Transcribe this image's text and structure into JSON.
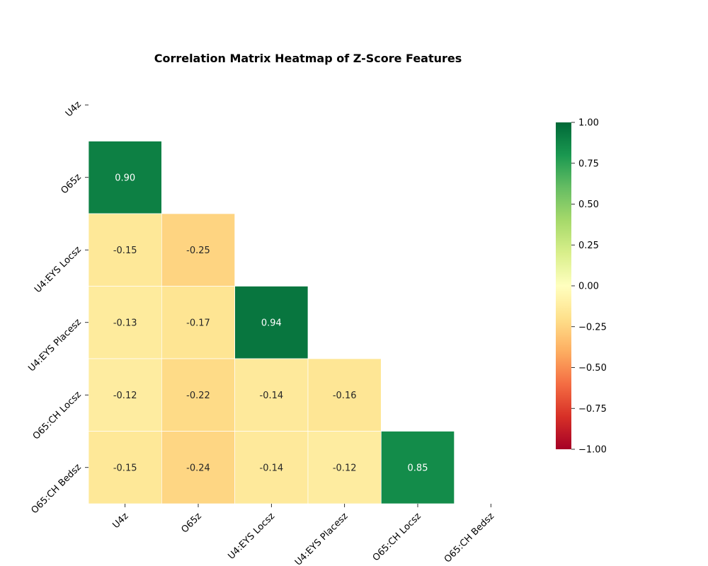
{
  "chart_data": {
    "type": "heatmap",
    "title": "Correlation Matrix Heatmap of Z-Score Features",
    "xlabel": "",
    "ylabel": "",
    "mask": "upper-triangle-including-diagonal",
    "categories": [
      "U4z",
      "O65z",
      "U4:EYS Locsz",
      "U4:EYS Placesz",
      "O65:CH Locsz",
      "O65:CH Bedsz"
    ],
    "rows": [
      {
        "y": "O65z",
        "cells": [
          {
            "x": "U4z",
            "value": 0.9,
            "label": "0.90"
          }
        ]
      },
      {
        "y": "U4:EYS Locsz",
        "cells": [
          {
            "x": "U4z",
            "value": -0.15,
            "label": "-0.15"
          },
          {
            "x": "O65z",
            "value": -0.25,
            "label": "-0.25"
          }
        ]
      },
      {
        "y": "U4:EYS Placesz",
        "cells": [
          {
            "x": "U4z",
            "value": -0.13,
            "label": "-0.13"
          },
          {
            "x": "O65z",
            "value": -0.17,
            "label": "-0.17"
          },
          {
            "x": "U4:EYS Locsz",
            "value": 0.94,
            "label": "0.94"
          }
        ]
      },
      {
        "y": "O65:CH Locsz",
        "cells": [
          {
            "x": "U4z",
            "value": -0.12,
            "label": "-0.12"
          },
          {
            "x": "O65z",
            "value": -0.22,
            "label": "-0.22"
          },
          {
            "x": "U4:EYS Locsz",
            "value": -0.14,
            "label": "-0.14"
          },
          {
            "x": "U4:EYS Placesz",
            "value": -0.16,
            "label": "-0.16"
          }
        ]
      },
      {
        "y": "O65:CH Bedsz",
        "cells": [
          {
            "x": "U4z",
            "value": -0.15,
            "label": "-0.15"
          },
          {
            "x": "O65z",
            "value": -0.24,
            "label": "-0.24"
          },
          {
            "x": "U4:EYS Locsz",
            "value": -0.14,
            "label": "-0.14"
          },
          {
            "x": "U4:EYS Placesz",
            "value": -0.12,
            "label": "-0.12"
          },
          {
            "x": "O65:CH Locsz",
            "value": 0.85,
            "label": "0.85"
          }
        ]
      }
    ],
    "colormap": "RdYlGn",
    "colorbar": {
      "range": [
        -1.0,
        1.0
      ],
      "ticks": [
        1.0,
        0.75,
        0.5,
        0.25,
        0.0,
        -0.25,
        -0.5,
        -0.75,
        -1.0
      ],
      "tick_labels": [
        "1.00",
        "0.75",
        "0.50",
        "0.25",
        "0.00",
        "−0.25",
        "−0.50",
        "−0.75",
        "−1.00"
      ]
    },
    "grid": false,
    "legend": "right"
  }
}
